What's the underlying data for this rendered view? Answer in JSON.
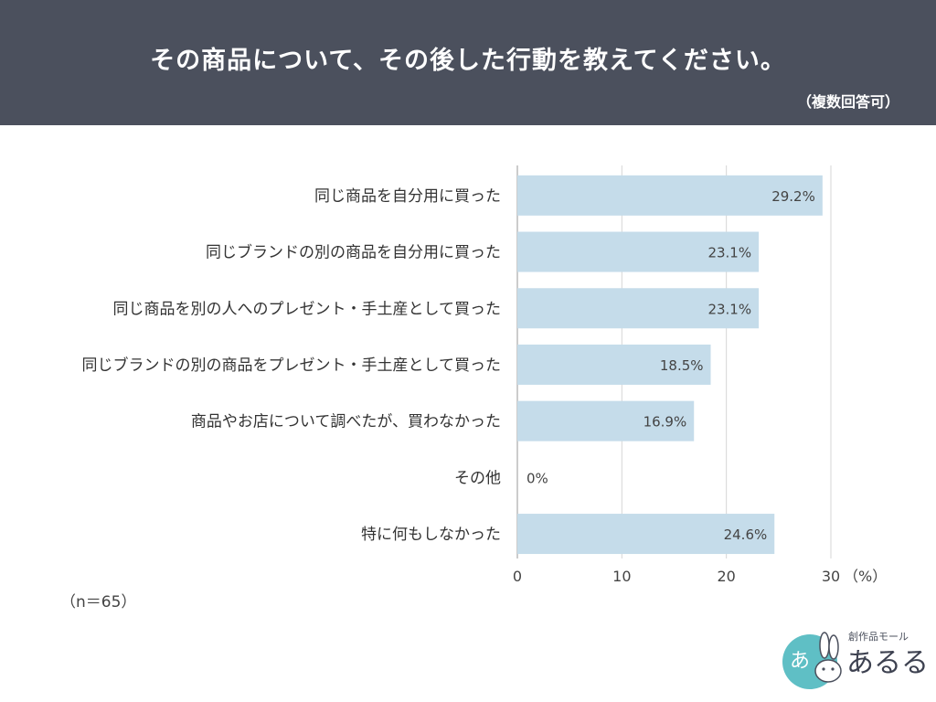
{
  "header": {
    "title": "その商品について、その後した行動を教えてください。",
    "subtitle": "（複数回答可）"
  },
  "chart_data": {
    "type": "bar",
    "orientation": "horizontal",
    "categories": [
      "同じ商品を自分用に買った",
      "同じブランドの別の商品を自分用に買った",
      "同じ商品を別の人へのプレゼント・手土産として買った",
      "同じブランドの別の商品をプレゼント・手土産として買った",
      "商品やお店について調べたが、買わなかった",
      "その他",
      "特に何もしなかった"
    ],
    "values": [
      29.2,
      23.1,
      23.1,
      18.5,
      16.9,
      0,
      24.6
    ],
    "value_labels": [
      "29.2%",
      "23.1%",
      "23.1%",
      "18.5%",
      "16.9%",
      "0%",
      "24.6%"
    ],
    "xlim": [
      0,
      30
    ],
    "xticks": [
      0,
      10,
      20,
      30
    ],
    "xtick_labels": [
      "0",
      "10",
      "20",
      "30"
    ],
    "unit_label": "（%）",
    "grid": true,
    "bar_color": "#c5dcea"
  },
  "footer": {
    "n_note": "（n＝65）"
  },
  "logo": {
    "small_text": "創作品モール",
    "big_text": "あるる",
    "circle_color": "#5fbfc5"
  }
}
